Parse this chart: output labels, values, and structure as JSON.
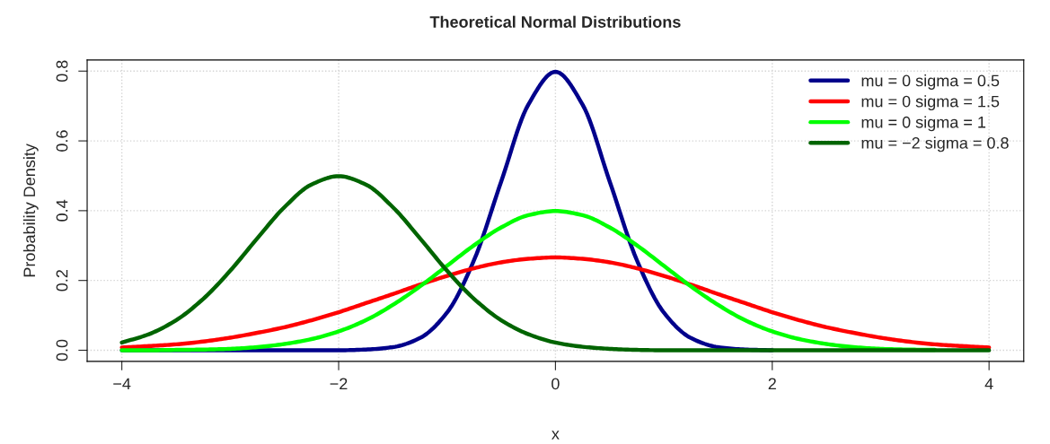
{
  "chart_data": {
    "type": "line",
    "title": "Theoretical Normal Distributions",
    "xlabel": "x",
    "ylabel": "Probability Density",
    "x": [
      -4,
      -3.75,
      -3.5,
      -3.25,
      -3,
      -2.75,
      -2.5,
      -2.25,
      -2,
      -1.75,
      -1.5,
      -1.25,
      -1,
      -0.75,
      -0.5,
      -0.25,
      0,
      0.25,
      0.5,
      0.75,
      1,
      1.25,
      1.5,
      1.75,
      2,
      2.25,
      2.5,
      2.75,
      3,
      3.25,
      3.5,
      3.75,
      4
    ],
    "series": [
      {
        "name": "mu = 0 sigma = 0.5",
        "color": "#00008b",
        "values": [
          0,
          0,
          0,
          0,
          0,
          0,
          0,
          0,
          0,
          0.002,
          0.009,
          0.035,
          0.108,
          0.259,
          0.484,
          0.704,
          0.798,
          0.704,
          0.484,
          0.259,
          0.108,
          0.035,
          0.009,
          0.002,
          0,
          null,
          null,
          null,
          null,
          null,
          null,
          null,
          null
        ]
      },
      {
        "name": "mu = 0 sigma = 1.5",
        "color": "#ff0000",
        "values": [
          0.008,
          0.012,
          0.017,
          0.025,
          0.036,
          0.05,
          0.066,
          0.086,
          0.109,
          0.135,
          0.161,
          0.188,
          0.213,
          0.235,
          0.252,
          0.262,
          0.266,
          0.262,
          0.252,
          0.235,
          0.213,
          0.188,
          0.161,
          0.135,
          0.109,
          0.086,
          0.066,
          0.05,
          0.036,
          0.025,
          0.017,
          0.012,
          0.008
        ]
      },
      {
        "name": "mu = 0 sigma = 1",
        "color": "#00ff00",
        "values": [
          0,
          0,
          0.001,
          0.002,
          0.004,
          0.009,
          0.018,
          0.032,
          0.054,
          0.086,
          0.13,
          0.183,
          0.242,
          0.301,
          0.352,
          0.387,
          0.399,
          0.387,
          0.352,
          0.301,
          0.242,
          0.183,
          0.13,
          0.086,
          0.054,
          0.032,
          0.018,
          0.009,
          0.004,
          0.002,
          0.001,
          null,
          null
        ]
      },
      {
        "name": "mu = −2 sigma = 0.8",
        "color": "#006400",
        "values": [
          0.022,
          0.046,
          0.086,
          0.147,
          0.228,
          0.321,
          0.41,
          0.475,
          0.499,
          0.475,
          0.41,
          0.321,
          0.228,
          0.147,
          0.086,
          0.046,
          0.022,
          0.01,
          0.004,
          0.001,
          0,
          0,
          0,
          0,
          0,
          0,
          0,
          0,
          0,
          0,
          0,
          0,
          0
        ]
      }
    ],
    "xlim": [
      -4.32,
      4.32
    ],
    "ylim": [
      -0.032,
      0.832
    ],
    "xticks": [
      {
        "value": -4,
        "label": "−4"
      },
      {
        "value": -2,
        "label": "−2"
      },
      0,
      2,
      4
    ],
    "yticks": [
      {
        "value": 0,
        "label": "0.0"
      },
      0.2,
      0.4,
      0.6,
      0.8
    ],
    "grid": true,
    "legend": "top right",
    "marker": "none",
    "line_style": "solid"
  }
}
